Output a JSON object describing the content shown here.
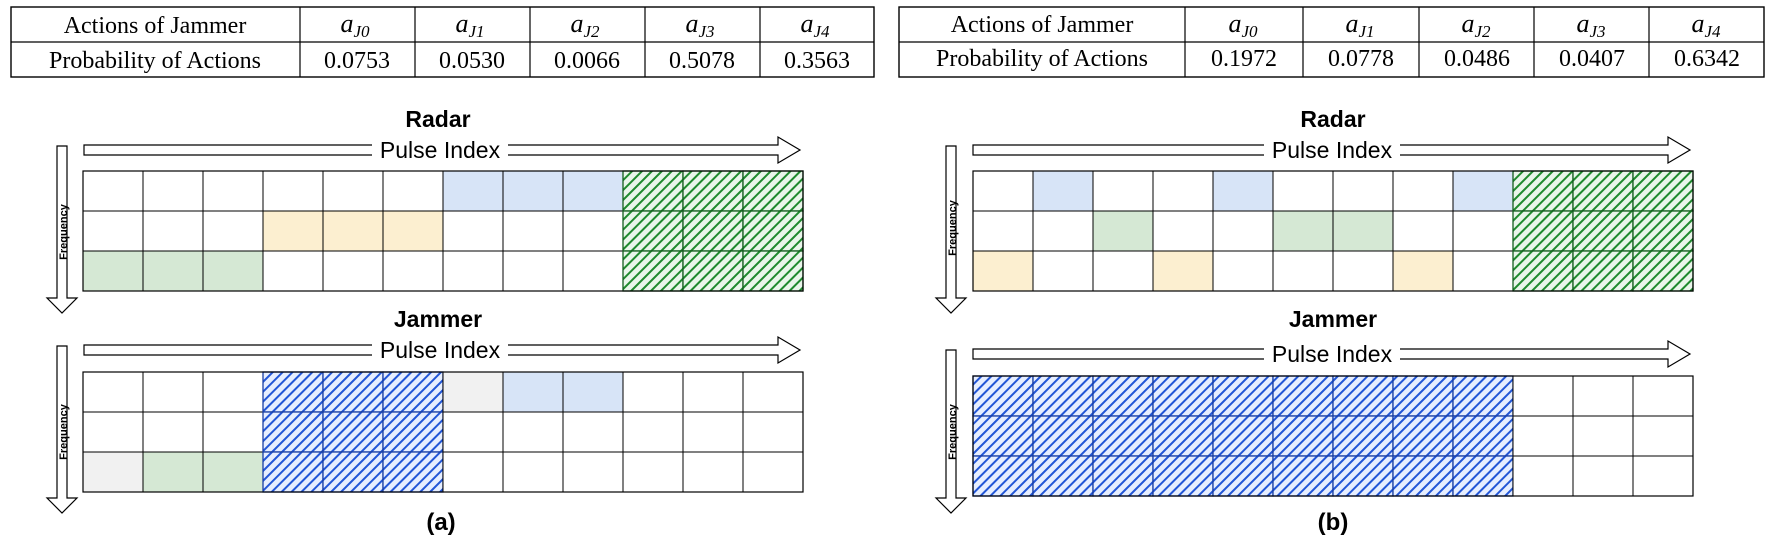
{
  "colors": {
    "blue_light": "#d7e4f7",
    "yellow_light": "#fcefd0",
    "green_light": "#d5e8d4",
    "gray_light": "#f1f1f1",
    "green_hatch": "#1f8a2e",
    "green_hatch_bg": "#2e9a3b",
    "blue_hatch": "#2256d6",
    "grid": "#000000"
  },
  "panels": [
    {
      "id": "a",
      "caption": "(a)",
      "table": {
        "row1_label": "Actions of Jammer",
        "actions": [
          "J0",
          "J1",
          "J2",
          "J3",
          "J4"
        ],
        "row2_label": "Probability of Actions",
        "probabilities": [
          "0.0753",
          "0.0530",
          "0.0066",
          "0.5078",
          "0.3563"
        ]
      },
      "radar": {
        "title": "Radar",
        "x_label": "Pulse Index",
        "y_label": "Frequency",
        "cols": 12,
        "rows": 3,
        "cells": [
          {
            "r": 0,
            "c": 6,
            "fill": "blue"
          },
          {
            "r": 0,
            "c": 7,
            "fill": "blue"
          },
          {
            "r": 0,
            "c": 8,
            "fill": "blue"
          },
          {
            "r": 1,
            "c": 3,
            "fill": "yellow"
          },
          {
            "r": 1,
            "c": 4,
            "fill": "yellow"
          },
          {
            "r": 1,
            "c": 5,
            "fill": "yellow"
          },
          {
            "r": 2,
            "c": 0,
            "fill": "green"
          },
          {
            "r": 2,
            "c": 1,
            "fill": "green"
          },
          {
            "r": 2,
            "c": 2,
            "fill": "green"
          },
          {
            "r": 0,
            "c": 9,
            "fill": "greenhatch"
          },
          {
            "r": 0,
            "c": 10,
            "fill": "greenhatch"
          },
          {
            "r": 0,
            "c": 11,
            "fill": "greenhatch"
          },
          {
            "r": 1,
            "c": 9,
            "fill": "greenhatch"
          },
          {
            "r": 1,
            "c": 10,
            "fill": "greenhatch"
          },
          {
            "r": 1,
            "c": 11,
            "fill": "greenhatch"
          },
          {
            "r": 2,
            "c": 9,
            "fill": "greenhatch"
          },
          {
            "r": 2,
            "c": 10,
            "fill": "greenhatch"
          },
          {
            "r": 2,
            "c": 11,
            "fill": "greenhatch"
          }
        ]
      },
      "jammer": {
        "title": "Jammer",
        "x_label": "Pulse Index",
        "y_label": "Frequency",
        "cols": 12,
        "rows": 3,
        "cells": [
          {
            "r": 0,
            "c": 3,
            "fill": "bluehatch"
          },
          {
            "r": 0,
            "c": 4,
            "fill": "bluehatch"
          },
          {
            "r": 0,
            "c": 5,
            "fill": "bluehatch"
          },
          {
            "r": 1,
            "c": 3,
            "fill": "bluehatch"
          },
          {
            "r": 1,
            "c": 4,
            "fill": "bluehatch"
          },
          {
            "r": 1,
            "c": 5,
            "fill": "bluehatch"
          },
          {
            "r": 2,
            "c": 3,
            "fill": "bluehatch"
          },
          {
            "r": 2,
            "c": 4,
            "fill": "bluehatch"
          },
          {
            "r": 2,
            "c": 5,
            "fill": "bluehatch"
          },
          {
            "r": 0,
            "c": 6,
            "fill": "gray"
          },
          {
            "r": 0,
            "c": 7,
            "fill": "blue"
          },
          {
            "r": 0,
            "c": 8,
            "fill": "blue"
          },
          {
            "r": 2,
            "c": 0,
            "fill": "gray"
          },
          {
            "r": 2,
            "c": 1,
            "fill": "green"
          },
          {
            "r": 2,
            "c": 2,
            "fill": "green"
          }
        ]
      }
    },
    {
      "id": "b",
      "caption": "(b)",
      "table": {
        "row1_label": "Actions of Jammer",
        "actions": [
          "J0",
          "J1",
          "J2",
          "J3",
          "J4"
        ],
        "row2_label": "Probability of Actions",
        "probabilities": [
          "0.1972",
          "0.0778",
          "0.0486",
          "0.0407",
          "0.6342"
        ]
      },
      "radar": {
        "title": "Radar",
        "x_label": "Pulse Index",
        "y_label": "Frequency",
        "cols": 12,
        "rows": 3,
        "cells": [
          {
            "r": 0,
            "c": 1,
            "fill": "blue"
          },
          {
            "r": 0,
            "c": 4,
            "fill": "blue"
          },
          {
            "r": 0,
            "c": 8,
            "fill": "blue"
          },
          {
            "r": 1,
            "c": 2,
            "fill": "green"
          },
          {
            "r": 1,
            "c": 5,
            "fill": "green"
          },
          {
            "r": 1,
            "c": 6,
            "fill": "green"
          },
          {
            "r": 2,
            "c": 0,
            "fill": "yellow"
          },
          {
            "r": 2,
            "c": 3,
            "fill": "yellow"
          },
          {
            "r": 2,
            "c": 7,
            "fill": "yellow"
          },
          {
            "r": 0,
            "c": 9,
            "fill": "greenhatch"
          },
          {
            "r": 0,
            "c": 10,
            "fill": "greenhatch"
          },
          {
            "r": 0,
            "c": 11,
            "fill": "greenhatch"
          },
          {
            "r": 1,
            "c": 9,
            "fill": "greenhatch"
          },
          {
            "r": 1,
            "c": 10,
            "fill": "greenhatch"
          },
          {
            "r": 1,
            "c": 11,
            "fill": "greenhatch"
          },
          {
            "r": 2,
            "c": 9,
            "fill": "greenhatch"
          },
          {
            "r": 2,
            "c": 10,
            "fill": "greenhatch"
          },
          {
            "r": 2,
            "c": 11,
            "fill": "greenhatch"
          }
        ]
      },
      "jammer": {
        "title": "Jammer",
        "x_label": "Pulse Index",
        "y_label": "Frequency",
        "cols": 12,
        "rows": 3,
        "cells": [
          {
            "r": 0,
            "c": 0,
            "fill": "bluehatch"
          },
          {
            "r": 0,
            "c": 1,
            "fill": "bluehatch"
          },
          {
            "r": 0,
            "c": 2,
            "fill": "bluehatch"
          },
          {
            "r": 0,
            "c": 3,
            "fill": "bluehatch"
          },
          {
            "r": 0,
            "c": 4,
            "fill": "bluehatch"
          },
          {
            "r": 0,
            "c": 5,
            "fill": "bluehatch"
          },
          {
            "r": 0,
            "c": 6,
            "fill": "bluehatch"
          },
          {
            "r": 0,
            "c": 7,
            "fill": "bluehatch"
          },
          {
            "r": 0,
            "c": 8,
            "fill": "bluehatch"
          },
          {
            "r": 1,
            "c": 0,
            "fill": "bluehatch"
          },
          {
            "r": 1,
            "c": 1,
            "fill": "bluehatch"
          },
          {
            "r": 1,
            "c": 2,
            "fill": "bluehatch"
          },
          {
            "r": 1,
            "c": 3,
            "fill": "bluehatch"
          },
          {
            "r": 1,
            "c": 4,
            "fill": "bluehatch"
          },
          {
            "r": 1,
            "c": 5,
            "fill": "bluehatch"
          },
          {
            "r": 1,
            "c": 6,
            "fill": "bluehatch"
          },
          {
            "r": 1,
            "c": 7,
            "fill": "bluehatch"
          },
          {
            "r": 1,
            "c": 8,
            "fill": "bluehatch"
          },
          {
            "r": 2,
            "c": 0,
            "fill": "bluehatch"
          },
          {
            "r": 2,
            "c": 1,
            "fill": "bluehatch"
          },
          {
            "r": 2,
            "c": 2,
            "fill": "bluehatch"
          },
          {
            "r": 2,
            "c": 3,
            "fill": "bluehatch"
          },
          {
            "r": 2,
            "c": 4,
            "fill": "bluehatch"
          },
          {
            "r": 2,
            "c": 5,
            "fill": "bluehatch"
          },
          {
            "r": 2,
            "c": 6,
            "fill": "bluehatch"
          },
          {
            "r": 2,
            "c": 7,
            "fill": "bluehatch"
          },
          {
            "r": 2,
            "c": 8,
            "fill": "bluehatch"
          }
        ]
      }
    }
  ]
}
